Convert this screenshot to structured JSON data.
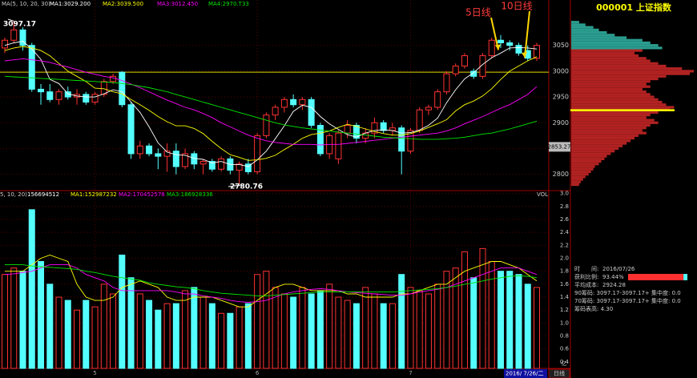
{
  "chart_data": [
    {
      "type": "candlestick",
      "legend_title": "MA(5, 10, 20, 30)",
      "categories": [
        null,
        null,
        null,
        null,
        null,
        null,
        null,
        null,
        null,
        null,
        "5",
        null,
        null,
        null,
        null,
        null,
        null,
        null,
        null,
        null,
        null,
        null,
        null,
        null,
        null,
        null,
        null,
        null,
        "6",
        null,
        null,
        null,
        null,
        null,
        null,
        null,
        null,
        null,
        null,
        null,
        null,
        null,
        null,
        null,
        null,
        "7",
        null,
        null,
        null,
        null,
        null,
        null,
        null,
        null,
        null,
        null,
        null,
        null,
        null,
        null
      ],
      "open": [
        3045,
        3060,
        3080,
        3050,
        2965,
        2960,
        2945,
        2960,
        2950,
        2955,
        2940,
        2955,
        2980,
        2998,
        2935,
        2840,
        2855,
        2840,
        2835,
        2845,
        2815,
        2840,
        2820,
        2825,
        2810,
        2830,
        2808,
        2820,
        2805,
        2875,
        2915,
        2930,
        2945,
        2935,
        2945,
        2895,
        2840,
        2830,
        2880,
        2895,
        2870,
        2880,
        2900,
        2885,
        2890,
        2845,
        2885,
        2925,
        2930,
        2960,
        2995,
        3010,
        3000,
        2990,
        3030,
        3060,
        3055,
        3050,
        3040,
        3025
      ],
      "high": [
        3065,
        3097.17,
        3085,
        3055,
        2975,
        2975,
        2965,
        2970,
        2965,
        2960,
        2960,
        2985,
        2995,
        3000,
        2940,
        2865,
        2860,
        2850,
        2860,
        2860,
        2850,
        2845,
        2830,
        2830,
        2835,
        2835,
        2825,
        2830,
        2880,
        2920,
        2935,
        2950,
        2955,
        2950,
        2950,
        2900,
        2880,
        2885,
        2905,
        2900,
        2890,
        2910,
        2905,
        2900,
        2895,
        2890,
        2930,
        2935,
        2965,
        3000,
        3015,
        3035,
        3005,
        3035,
        3065,
        3070,
        3060,
        3055,
        3050,
        3055
      ],
      "low": [
        3035,
        3055,
        3040,
        2960,
        2935,
        2940,
        2935,
        2945,
        2935,
        2935,
        2935,
        2950,
        2975,
        2930,
        2830,
        2830,
        2835,
        2810,
        2805,
        2800,
        2810,
        2810,
        2800,
        2805,
        2805,
        2800,
        2780.76,
        2800,
        2800,
        2870,
        2905,
        2920,
        2930,
        2925,
        2890,
        2835,
        2830,
        2820,
        2870,
        2860,
        2860,
        2870,
        2880,
        2875,
        2800,
        2840,
        2880,
        2915,
        2925,
        2955,
        2990,
        3005,
        2985,
        2985,
        3025,
        3045,
        3040,
        3030,
        3020,
        3020
      ],
      "close": [
        3060,
        3080,
        3050,
        2965,
        2960,
        2945,
        2960,
        2950,
        2955,
        2940,
        2955,
        2980,
        2990,
        2935,
        2840,
        2855,
        2840,
        2835,
        2845,
        2815,
        2840,
        2820,
        2825,
        2810,
        2830,
        2808,
        2820,
        2805,
        2875,
        2915,
        2930,
        2945,
        2935,
        2945,
        2895,
        2840,
        2875,
        2880,
        2895,
        2870,
        2880,
        2900,
        2885,
        2890,
        2845,
        2885,
        2925,
        2930,
        2960,
        2995,
        3010,
        3030,
        2990,
        3030,
        3060,
        3055,
        3050,
        3035,
        3025,
        3050
      ],
      "color_up": "#ff3232",
      "color_down": "#54ffff",
      "ylim": [
        2770,
        3138
      ],
      "yticks": [
        2800,
        2850,
        2900,
        2950,
        3000,
        3050
      ],
      "grid": true,
      "ref_line": 2998,
      "cursor_price": 2853.27,
      "annotations": [
        {
          "text": "5日线",
          "series": 0
        },
        {
          "text": "10日线",
          "series": 1
        }
      ],
      "ma_series": [
        {
          "name": "MA1:3029.200",
          "color": "#ffffff",
          "values": [
            3050,
            3055,
            3058,
            3043,
            3023,
            2984,
            2976,
            2956,
            2952,
            2950,
            2950,
            2956,
            2964,
            2960,
            2940,
            2920,
            2892,
            2861,
            2843,
            2838,
            2837,
            2831,
            2829,
            2822,
            2825,
            2819,
            2819,
            2815,
            2828,
            2845,
            2869,
            2894,
            2922,
            2934,
            2930,
            2912,
            2898,
            2887,
            2877,
            2872,
            2880,
            2885,
            2886,
            2885,
            2880,
            2881,
            2886,
            2895,
            2909,
            2939,
            2964,
            2985,
            2997,
            3013,
            3026,
            3035,
            3045,
            3046,
            3045,
            3043
          ]
        },
        {
          "name": "MA2:3039.500",
          "color": "#ffff00",
          "values": [
            3040,
            3045,
            3048,
            3045,
            3040,
            3030,
            3015,
            3000,
            2990,
            2980,
            2967,
            2966,
            2960,
            2956,
            2945,
            2935,
            2924,
            2912,
            2902,
            2894,
            2894,
            2889,
            2879,
            2864,
            2850,
            2838,
            2833,
            2827,
            2828,
            2831,
            2837,
            2848,
            2858,
            2870,
            2877,
            2880,
            2884,
            2891,
            2897,
            2893,
            2888,
            2883,
            2879,
            2876,
            2876,
            2879,
            2884,
            2891,
            2898,
            2906,
            2923,
            2935,
            2942,
            2952,
            2966,
            2984,
            3000,
            3010,
            3020,
            3028
          ]
        },
        {
          "name": "MA3:3012.450",
          "color": "#ff00ff",
          "values": [
            3020,
            3022,
            3024,
            3022,
            3020,
            3017,
            3012,
            3008,
            3003,
            2998,
            2994,
            2990,
            2987,
            2982,
            2975,
            2968,
            2960,
            2952,
            2944,
            2937,
            2930,
            2925,
            2918,
            2910,
            2900,
            2892,
            2884,
            2876,
            2870,
            2865,
            2862,
            2860,
            2858,
            2858,
            2858,
            2857,
            2858,
            2858,
            2860,
            2862,
            2864,
            2866,
            2868,
            2870,
            2872,
            2874,
            2876,
            2878,
            2880,
            2884,
            2890,
            2898,
            2905,
            2912,
            2920,
            2928,
            2935,
            2945,
            2955,
            2970
          ]
        },
        {
          "name": "MA4:2970.T33",
          "color": "#00e600",
          "values": [
            2990,
            2989,
            2988,
            2987,
            2986,
            2985,
            2984,
            2983,
            2982,
            2981,
            2980,
            2979,
            2978,
            2976,
            2974,
            2971,
            2968,
            2964,
            2960,
            2955,
            2950,
            2945,
            2940,
            2935,
            2930,
            2925,
            2920,
            2915,
            2910,
            2905,
            2900,
            2896,
            2893,
            2890,
            2888,
            2886,
            2884,
            2882,
            2880,
            2878,
            2876,
            2874,
            2872,
            2871,
            2870,
            2869,
            2868,
            2868,
            2868,
            2869,
            2870,
            2872,
            2875,
            2878,
            2880,
            2884,
            2888,
            2893,
            2898,
            2903
          ]
        }
      ]
    },
    {
      "type": "volume",
      "axis_title": "VOL",
      "legend_title": "5, 10, 20)",
      "total": 156694512,
      "unit": "亿",
      "values": [
        1.75,
        1.85,
        1.8,
        2.75,
        1.95,
        1.6,
        1.4,
        1.35,
        1.2,
        1.35,
        1.25,
        1.6,
        1.45,
        2.05,
        1.7,
        1.45,
        1.35,
        1.2,
        1.3,
        1.3,
        1.5,
        1.55,
        1.4,
        1.3,
        1.15,
        1.15,
        1.25,
        1.3,
        1.75,
        1.8,
        1.55,
        1.45,
        1.4,
        1.55,
        1.45,
        1.5,
        1.6,
        1.4,
        1.35,
        1.3,
        1.55,
        1.45,
        1.3,
        1.3,
        1.75,
        1.55,
        1.5,
        1.45,
        1.6,
        1.8,
        1.85,
        2.1,
        1.7,
        2.15,
        1.95,
        1.8,
        1.8,
        1.75,
        1.6,
        1.55
      ],
      "ylim": [
        0.3,
        3.02
      ],
      "yticks": [
        {
          "value": 3,
          "label": "3.0"
        },
        2.8,
        2.6,
        2.4,
        2.2,
        {
          "value": 2,
          "label": "2.0"
        },
        1.8,
        1.6,
        1.4,
        1.2,
        {
          "value": 1,
          "label": "1.0"
        },
        0.8,
        0.6,
        0.4
      ],
      "ma_series": [
        {
          "name": "MA1:152987232",
          "color": "#ffff00",
          "values": [
            1.8,
            1.8,
            1.8,
            1.9,
            2.0,
            2.05,
            2.0,
            1.95,
            1.6,
            1.4,
            1.35,
            1.35,
            1.4,
            1.55,
            1.6,
            1.65,
            1.6,
            1.55,
            1.4,
            1.35,
            1.35,
            1.4,
            1.4,
            1.4,
            1.35,
            1.3,
            1.25,
            1.25,
            1.35,
            1.45,
            1.55,
            1.6,
            1.6,
            1.55,
            1.5,
            1.5,
            1.5,
            1.5,
            1.45,
            1.45,
            1.4,
            1.4,
            1.4,
            1.4,
            1.45,
            1.45,
            1.5,
            1.55,
            1.6,
            1.6,
            1.7,
            1.8,
            1.85,
            1.9,
            1.95,
            1.95,
            1.9,
            1.85,
            1.75,
            1.65
          ]
        },
        {
          "name": "MA2:170452576",
          "color": "#ff00ff",
          "values": [
            1.75,
            1.76,
            1.78,
            1.8,
            1.85,
            1.9,
            1.9,
            1.9,
            1.85,
            1.75,
            1.7,
            1.65,
            1.55,
            1.5,
            1.5,
            1.5,
            1.5,
            1.5,
            1.5,
            1.48,
            1.45,
            1.45,
            1.42,
            1.4,
            1.38,
            1.35,
            1.33,
            1.32,
            1.33,
            1.35,
            1.4,
            1.45,
            1.48,
            1.5,
            1.52,
            1.53,
            1.52,
            1.5,
            1.48,
            1.47,
            1.46,
            1.45,
            1.44,
            1.43,
            1.43,
            1.45,
            1.48,
            1.5,
            1.52,
            1.55,
            1.6,
            1.65,
            1.7,
            1.75,
            1.8,
            1.85,
            1.85,
            1.85,
            1.8,
            1.75
          ]
        },
        {
          "name": "MA3:186928336",
          "color": "#00e600",
          "values": [
            1.9,
            1.9,
            1.9,
            1.88,
            1.87,
            1.86,
            1.85,
            1.84,
            1.83,
            1.8,
            1.78,
            1.75,
            1.72,
            1.7,
            1.68,
            1.66,
            1.62,
            1.6,
            1.58,
            1.56,
            1.55,
            1.53,
            1.5,
            1.48,
            1.46,
            1.45,
            1.44,
            1.43,
            1.42,
            1.42,
            1.43,
            1.44,
            1.45,
            1.46,
            1.47,
            1.48,
            1.48,
            1.48,
            1.48,
            1.48,
            1.48,
            1.48,
            1.48,
            1.48,
            1.49,
            1.5,
            1.51,
            1.52,
            1.53,
            1.55,
            1.57,
            1.6,
            1.62,
            1.65,
            1.68,
            1.7,
            1.72,
            1.73,
            1.72,
            1.7
          ]
        }
      ]
    },
    {
      "type": "chip",
      "title": "000001 上证指数",
      "xlim": [
        0,
        160
      ],
      "series": [
        {
          "color": "#2a9d8f",
          "prices": [
            3095,
            3090,
            3085,
            3080,
            3075,
            3070,
            3065,
            3060,
            3055,
            3050,
            3045
          ],
          "values": [
            10,
            18,
            28,
            35,
            45,
            55,
            70,
            90,
            100,
            110,
            115
          ]
        },
        {
          "color": "#b22222",
          "prices": [
            3040,
            3035,
            3030,
            3025,
            3020,
            3015,
            3010,
            3005,
            3000,
            2995,
            2990,
            2985,
            2980,
            2975,
            2970,
            2965,
            2960,
            2955,
            2950,
            2945,
            2940,
            2935,
            2930,
            2925,
            2920,
            2915,
            2910,
            2905,
            2900,
            2895,
            2890,
            2885,
            2880,
            2875,
            2870,
            2865,
            2860,
            2855,
            2850,
            2845,
            2840,
            2835,
            2830,
            2825,
            2820,
            2815,
            2810,
            2805,
            2800,
            2795,
            2790,
            2785,
            2780
          ],
          "values": [
            90,
            80,
            85,
            95,
            100,
            110,
            120,
            140,
            155,
            150,
            120,
            110,
            100,
            95,
            100,
            90,
            95,
            100,
            105,
            110,
            115,
            120,
            130,
            125,
            110,
            100,
            95,
            105,
            110,
            100,
            95,
            90,
            95,
            85,
            80,
            75,
            70,
            65,
            60,
            55,
            50,
            45,
            42,
            38,
            35,
            30,
            28,
            25,
            22,
            18,
            15,
            12,
            10
          ]
        }
      ]
    }
  ],
  "info": {
    "time": {
      "label": "时　　间:",
      "value": "2016/07/26"
    },
    "profit": {
      "label": "获利比例:",
      "value": 93.44,
      "value_label": "93.44%"
    },
    "avg_cost": {
      "label": "平均成本:",
      "value": 2924.28
    },
    "rows": [
      "90筹码: 3097.17-3097.17+  集中度: 0.0",
      "70筹码: 3097.17-3097.17+  集中度: 0.0",
      "筹码表高: 4.30"
    ]
  },
  "footer": {
    "date": "2016/ 7/26/二",
    "period": "日线"
  }
}
